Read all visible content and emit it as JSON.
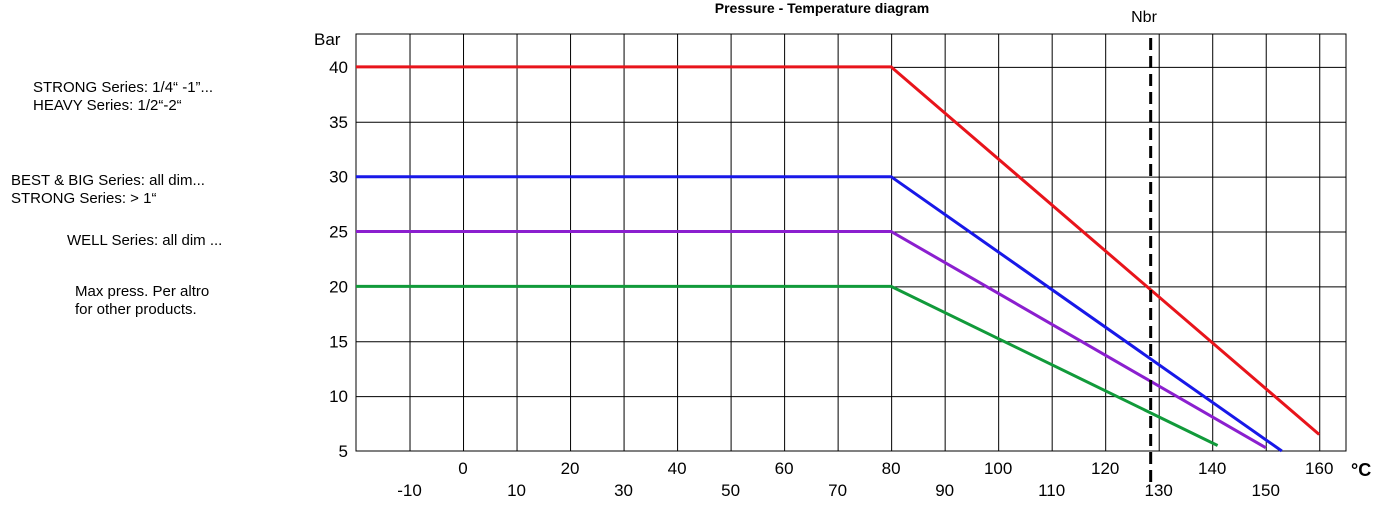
{
  "chart_data": {
    "type": "line",
    "title": "Pressure - Temperature diagram",
    "ylabel": "Bar",
    "xunit": "°C",
    "ylim": [
      5,
      43
    ],
    "xlim": [
      -20,
      165
    ],
    "y_ticks": [
      40,
      35,
      30,
      25,
      20,
      15,
      10,
      5
    ],
    "x_ticks_upper": [
      0,
      20,
      40,
      60,
      80,
      100,
      120,
      140,
      160
    ],
    "x_ticks_lower": [
      -10,
      10,
      30,
      50,
      70,
      90,
      110,
      130,
      150
    ],
    "grid": true,
    "reference_line": {
      "x": 128.5,
      "label": "Nbr",
      "style": "dashed",
      "color": "#000000"
    },
    "series": [
      {
        "color": "#e8141b",
        "points": [
          [
            -20,
            40
          ],
          [
            80,
            40
          ],
          [
            160,
            6.5
          ]
        ]
      },
      {
        "color": "#1818e8",
        "points": [
          [
            -20,
            30
          ],
          [
            80,
            30
          ],
          [
            153,
            5
          ]
        ]
      },
      {
        "color": "#8b1fcf",
        "points": [
          [
            -20,
            25
          ],
          [
            80,
            25
          ],
          [
            150,
            5.3
          ]
        ]
      },
      {
        "color": "#119a3a",
        "points": [
          [
            -20,
            20
          ],
          [
            80,
            20
          ],
          [
            141,
            5.5
          ]
        ]
      }
    ]
  },
  "legend_labels": {
    "strong_series": "STRONG Series: 1/4“ -1”...",
    "heavy_series": "HEAVY Series: 1/2“-2“",
    "best_big_series": "BEST & BIG Series: all dim...",
    "strong_series_2": "STRONG Series: > 1“",
    "well_series": "WELL Series: all dim ...",
    "max_press_1": "Max press. Per altro",
    "max_press_2": "for other products."
  }
}
